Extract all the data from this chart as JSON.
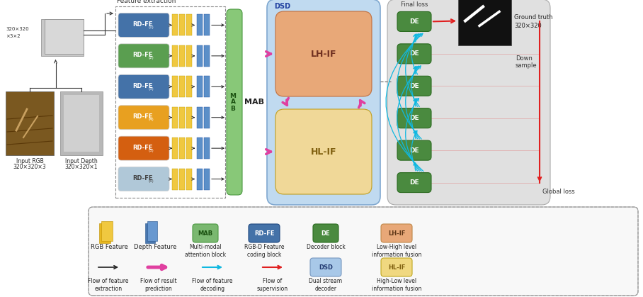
{
  "fig_width": 9.08,
  "fig_height": 4.19,
  "dpi": 100,
  "bg_color": "#ffffff",
  "rdfe_colors": [
    "#4472a8",
    "#5a9e50",
    "#4472a8",
    "#e8a020",
    "#d45f10",
    "#b0c8d8"
  ],
  "rdfe_labels": [
    "RD-FE(1)",
    "RD-FE(2)",
    "RD-FE(3)",
    "RD-FE(4)",
    "RD-FE(5)",
    "RD-FE(6)"
  ],
  "rdfe_text_colors": [
    "white",
    "white",
    "white",
    "white",
    "white",
    "#444444"
  ],
  "yellow_feat_color": "#f0c840",
  "blue_feat_color": "#5b8fc8",
  "mab_color": "#88c878",
  "dsd_bg_color": "#c0daf0",
  "lhif_color": "#e8a878",
  "hlif_color": "#f0d898",
  "de_color": "#4a8a3f",
  "decoder_bg_color": "#e0e0e0",
  "gt_bg_color": "#111111"
}
